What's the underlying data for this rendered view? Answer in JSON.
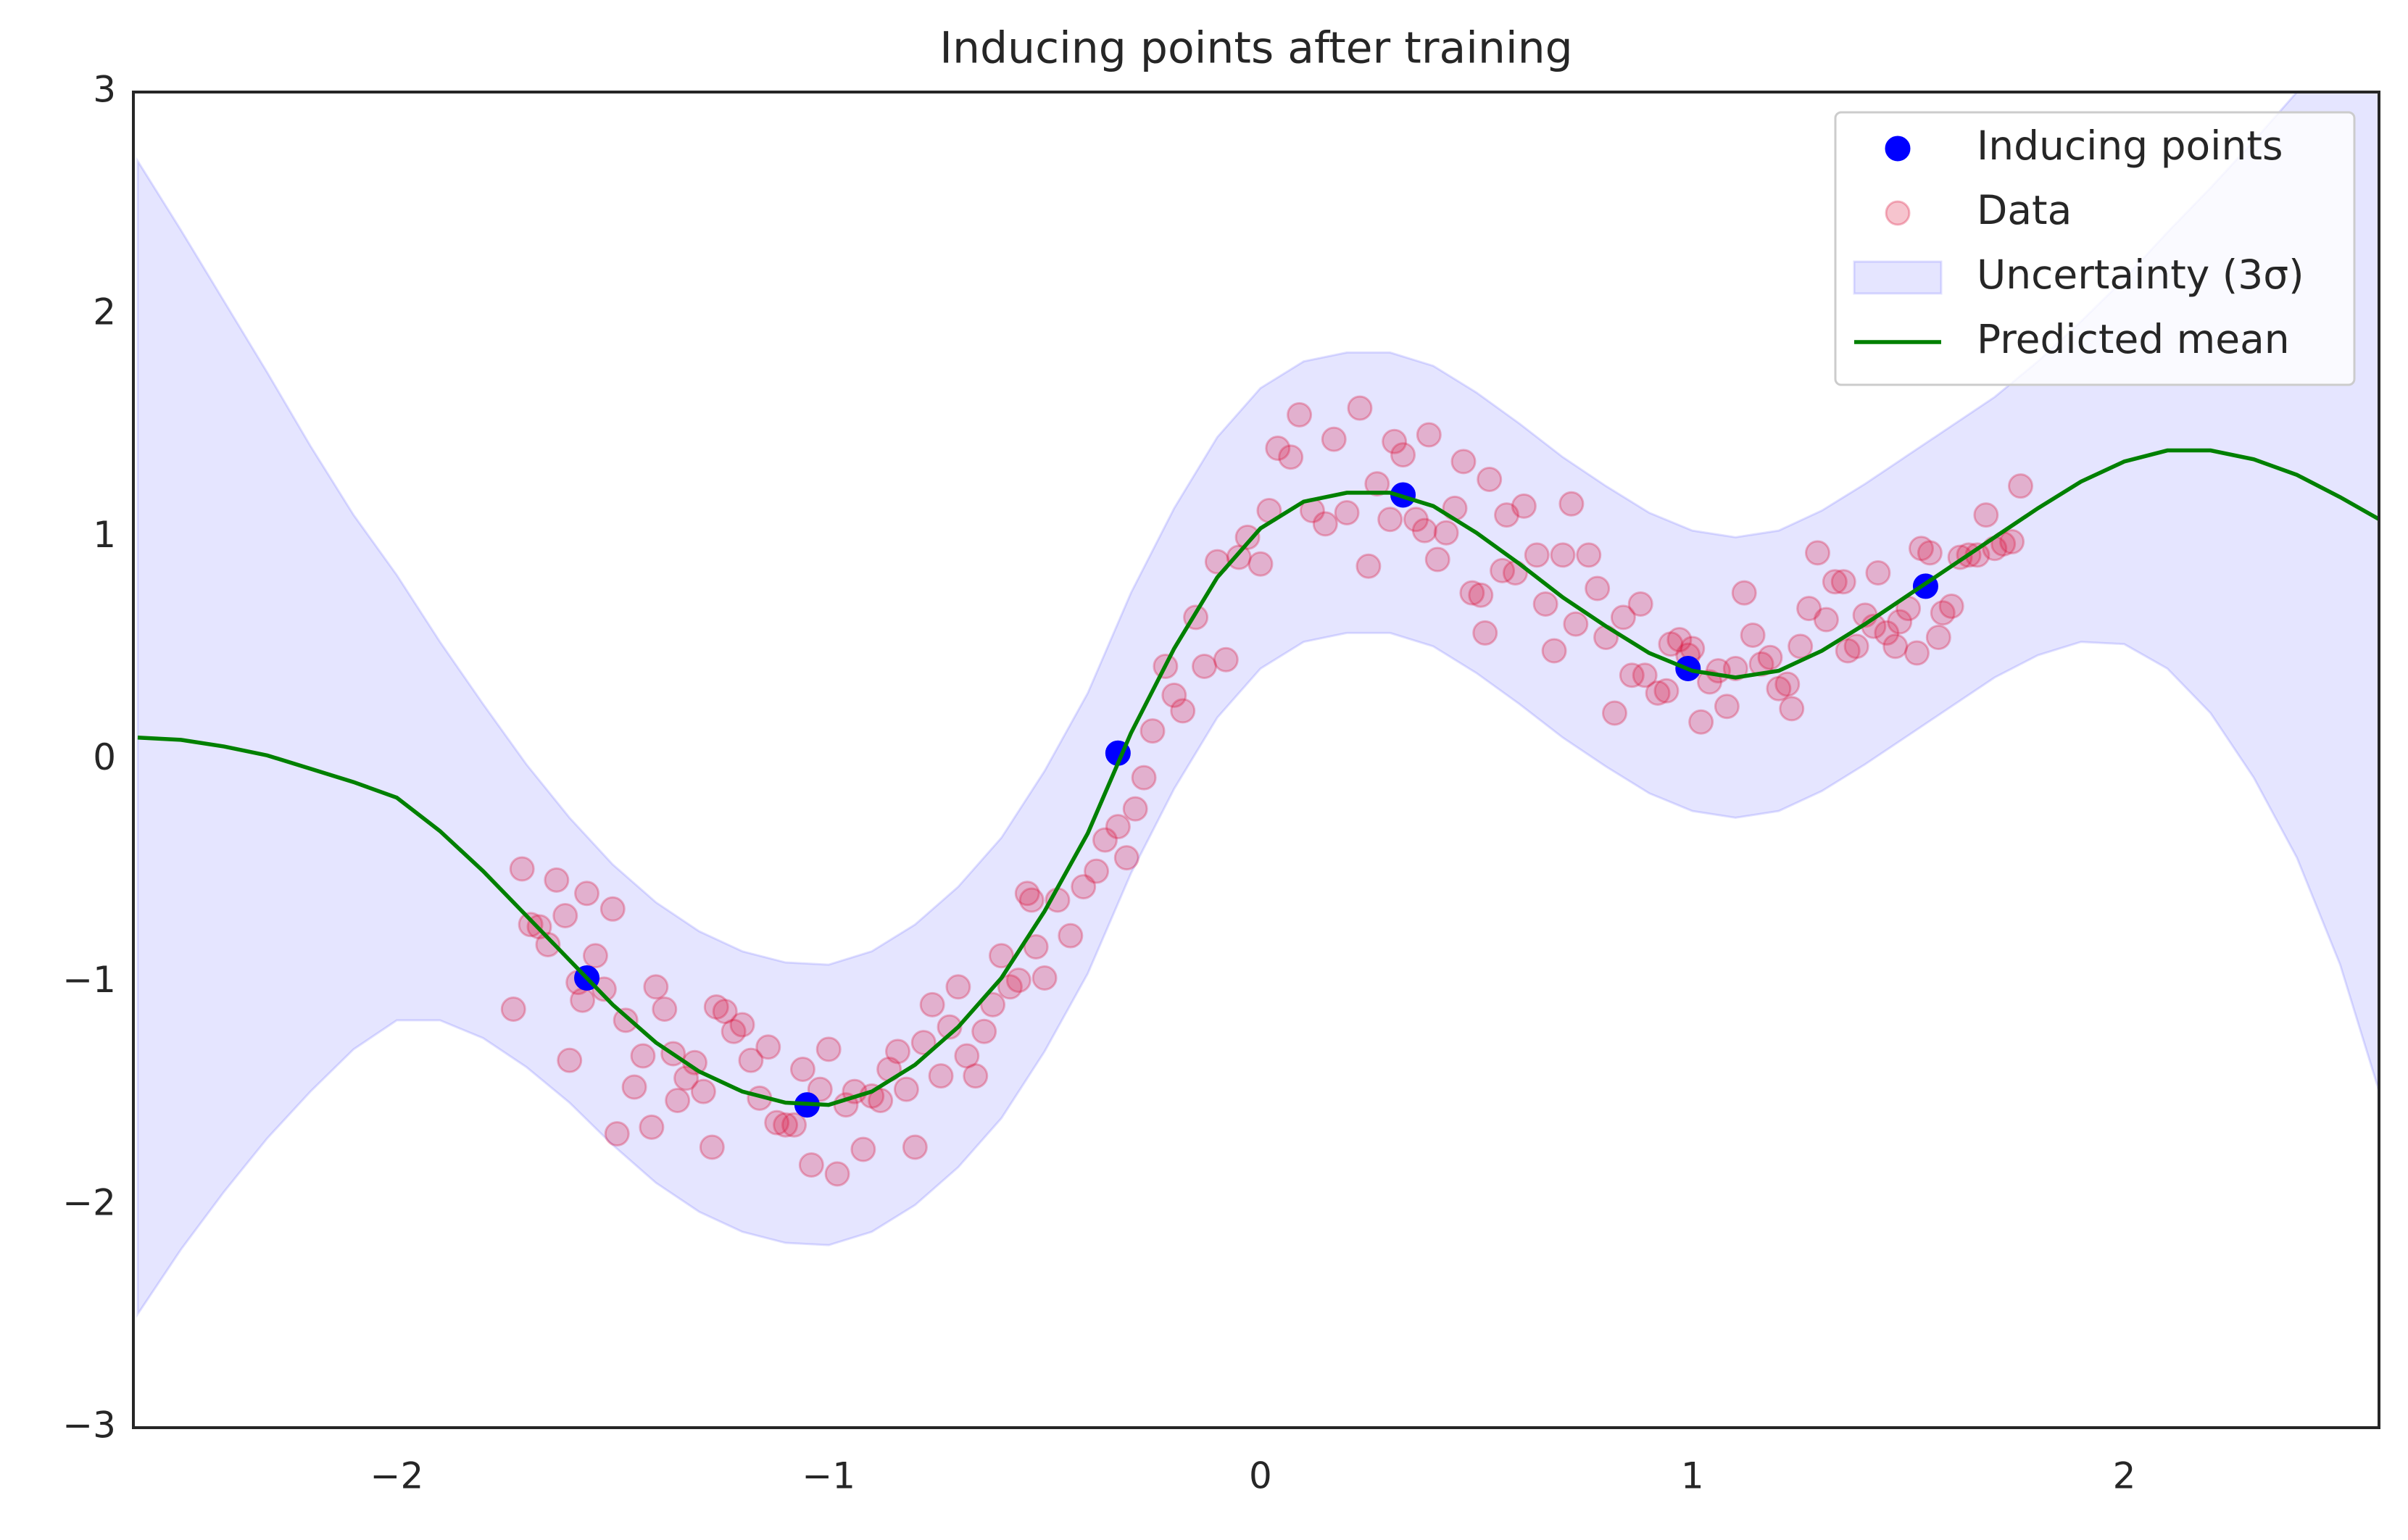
{
  "chart_data": {
    "type": "line",
    "title": "Inducing points after training",
    "xlim": [
      -2.61,
      2.59
    ],
    "ylim": [
      -3,
      3
    ],
    "xticks": [
      {
        "value": -2,
        "label": "−2"
      },
      {
        "value": -1,
        "label": "−1"
      },
      0,
      1,
      2
    ],
    "yticks": [
      {
        "value": -3,
        "label": "−3"
      },
      {
        "value": -2,
        "label": "−2"
      },
      {
        "value": -1,
        "label": "−1"
      },
      0,
      1,
      2,
      3
    ],
    "legend": "upper right",
    "x": [
      -2.6,
      -2.5,
      -2.4,
      -2.3,
      -2.2,
      -2.1,
      -2.0,
      -1.9,
      -1.8,
      -1.7,
      -1.6,
      -1.5,
      -1.4,
      -1.3,
      -1.2,
      -1.1,
      -1.0,
      -0.9,
      -0.8,
      -0.7,
      -0.6,
      -0.5,
      -0.4,
      -0.3,
      -0.2,
      -0.1,
      0.0,
      0.1,
      0.2,
      0.3,
      0.4,
      0.5,
      0.6,
      0.7,
      0.8,
      0.9,
      1.0,
      1.1,
      1.2,
      1.3,
      1.4,
      1.5,
      1.6,
      1.7,
      1.8,
      1.9,
      2.0,
      2.1,
      2.2,
      2.3,
      2.4,
      2.5,
      2.6
    ],
    "series": [
      {
        "name": "Inducing points",
        "type": "scatter",
        "color": "#0000ff",
        "x": [
          -1.56,
          -1.05,
          -0.33,
          0.33,
          0.99,
          1.54
        ],
        "values": [
          -0.98,
          -1.55,
          0.03,
          1.19,
          0.41,
          0.78
        ]
      },
      {
        "name": "Data",
        "type": "scatter",
        "color": "#dc143c",
        "x": [
          -1.73,
          -1.71,
          -1.69,
          -1.67,
          -1.65,
          -1.63,
          -1.61,
          -1.6,
          -1.58,
          -1.57,
          -1.56,
          -1.54,
          -1.52,
          -1.5,
          -1.49,
          -1.47,
          -1.45,
          -1.43,
          -1.41,
          -1.4,
          -1.38,
          -1.36,
          -1.35,
          -1.33,
          -1.31,
          -1.29,
          -1.27,
          -1.26,
          -1.24,
          -1.22,
          -1.2,
          -1.18,
          -1.16,
          -1.14,
          -1.12,
          -1.1,
          -1.08,
          -1.06,
          -1.04,
          -1.02,
          -1.0,
          -0.98,
          -0.96,
          -0.94,
          -0.92,
          -0.9,
          -0.88,
          -0.86,
          -0.84,
          -0.82,
          -0.8,
          -0.78,
          -0.76,
          -0.74,
          -0.72,
          -0.7,
          -0.68,
          -0.66,
          -0.64,
          -0.62,
          -0.6,
          -0.58,
          -0.56,
          -0.54,
          -0.53,
          -0.52,
          -0.5,
          -0.47,
          -0.44,
          -0.41,
          -0.38,
          -0.36,
          -0.33,
          -0.31,
          -0.29,
          -0.27,
          -0.25,
          -0.22,
          -0.2,
          -0.18,
          -0.15,
          -0.13,
          -0.1,
          -0.08,
          -0.05,
          -0.03,
          0.0,
          0.02,
          0.04,
          0.07,
          0.09,
          0.12,
          0.15,
          0.17,
          0.2,
          0.23,
          0.25,
          0.27,
          0.3,
          0.31,
          0.33,
          0.36,
          0.38,
          0.39,
          0.41,
          0.43,
          0.45,
          0.47,
          0.49,
          0.51,
          0.52,
          0.53,
          0.56,
          0.57,
          0.59,
          0.61,
          0.64,
          0.66,
          0.68,
          0.7,
          0.72,
          0.73,
          0.76,
          0.78,
          0.8,
          0.82,
          0.84,
          0.86,
          0.88,
          0.89,
          0.92,
          0.94,
          0.95,
          0.97,
          0.99,
          1.0,
          1.02,
          1.04,
          1.06,
          1.08,
          1.1,
          1.12,
          1.14,
          1.16,
          1.18,
          1.2,
          1.22,
          1.23,
          1.25,
          1.27,
          1.29,
          1.31,
          1.33,
          1.35,
          1.36,
          1.38,
          1.4,
          1.42,
          1.43,
          1.45,
          1.47,
          1.48,
          1.5,
          1.52,
          1.53,
          1.55,
          1.57,
          1.58,
          1.6,
          1.62,
          1.64,
          1.66,
          1.68,
          1.7,
          1.72,
          1.74,
          1.76
        ],
        "values": [
          -1.12,
          -0.49,
          -0.74,
          -0.75,
          -0.83,
          -0.54,
          -0.7,
          -1.35,
          -1.0,
          -1.08,
          -0.6,
          -0.88,
          -1.03,
          -0.67,
          -1.68,
          -1.17,
          -1.47,
          -1.33,
          -1.65,
          -1.02,
          -1.12,
          -1.32,
          -1.53,
          -1.43,
          -1.36,
          -1.49,
          -1.74,
          -1.11,
          -1.13,
          -1.22,
          -1.19,
          -1.35,
          -1.52,
          -1.29,
          -1.63,
          -1.64,
          -1.64,
          -1.39,
          -1.82,
          -1.48,
          -1.3,
          -1.86,
          -1.55,
          -1.49,
          -1.75,
          -1.51,
          -1.53,
          -1.39,
          -1.31,
          -1.48,
          -1.74,
          -1.27,
          -1.1,
          -1.42,
          -1.2,
          -1.02,
          -1.33,
          -1.42,
          -1.22,
          -1.1,
          -0.88,
          -1.02,
          -0.99,
          -0.6,
          -0.63,
          -0.84,
          -0.98,
          -0.63,
          -0.79,
          -0.57,
          -0.5,
          -0.36,
          -0.3,
          -0.44,
          -0.22,
          -0.08,
          0.13,
          0.42,
          0.29,
          0.22,
          0.64,
          0.42,
          0.89,
          0.45,
          0.91,
          1.0,
          0.88,
          1.12,
          1.4,
          1.36,
          1.55,
          1.12,
          1.06,
          1.44,
          1.11,
          1.58,
          0.87,
          1.24,
          1.08,
          1.43,
          1.37,
          1.08,
          1.03,
          1.46,
          0.9,
          1.02,
          1.13,
          1.34,
          0.75,
          0.74,
          0.57,
          1.26,
          0.85,
          1.1,
          0.84,
          1.14,
          0.92,
          0.7,
          0.49,
          0.92,
          1.15,
          0.61,
          0.92,
          0.77,
          0.55,
          0.21,
          0.64,
          0.38,
          0.7,
          0.38,
          0.3,
          0.31,
          0.52,
          0.54,
          0.47,
          0.5,
          0.17,
          0.35,
          0.4,
          0.24,
          0.41,
          0.75,
          0.56,
          0.43,
          0.46,
          0.32,
          0.34,
          0.23,
          0.51,
          0.68,
          0.93,
          0.63,
          0.8,
          0.8,
          0.49,
          0.51,
          0.65,
          0.6,
          0.84,
          0.57,
          0.51,
          0.62,
          0.68,
          0.48,
          0.95,
          0.93,
          0.55,
          0.66,
          0.69,
          0.91,
          0.92,
          0.92,
          1.1,
          0.95,
          0.97,
          0.98,
          1.23
        ]
      },
      {
        "name": "Uncertainty (3σ)",
        "type": "band",
        "color": "#0000ff",
        "upper": [
          2.69,
          2.38,
          2.06,
          1.74,
          1.41,
          1.1,
          0.83,
          0.53,
          0.25,
          -0.02,
          -0.26,
          -0.47,
          -0.64,
          -0.77,
          -0.86,
          -0.91,
          -0.92,
          -0.86,
          -0.74,
          -0.57,
          -0.35,
          -0.05,
          0.3,
          0.75,
          1.13,
          1.45,
          1.67,
          1.79,
          1.83,
          1.83,
          1.77,
          1.65,
          1.51,
          1.36,
          1.23,
          1.11,
          1.03,
          1.0,
          1.03,
          1.12,
          1.24,
          1.37,
          1.5,
          1.63,
          1.79,
          1.97,
          2.16,
          2.37,
          2.57,
          2.78,
          3.0,
          3.28,
          3.69
        ],
        "lower": [
          -2.49,
          -2.2,
          -1.94,
          -1.7,
          -1.49,
          -1.3,
          -1.17,
          -1.17,
          -1.25,
          -1.38,
          -1.54,
          -1.73,
          -1.9,
          -2.03,
          -2.12,
          -2.17,
          -2.18,
          -2.12,
          -2.0,
          -1.83,
          -1.61,
          -1.31,
          -0.96,
          -0.51,
          -0.13,
          0.19,
          0.41,
          0.53,
          0.57,
          0.57,
          0.51,
          0.39,
          0.25,
          0.1,
          -0.03,
          -0.15,
          -0.23,
          -0.26,
          -0.23,
          -0.14,
          -0.02,
          0.11,
          0.24,
          0.37,
          0.47,
          0.53,
          0.52,
          0.41,
          0.21,
          -0.08,
          -0.44,
          -0.92,
          -1.55
        ]
      },
      {
        "name": "Predicted mean",
        "type": "line",
        "color": "#008000",
        "values": [
          0.1,
          0.09,
          0.06,
          0.02,
          -0.04,
          -0.1,
          -0.17,
          -0.32,
          -0.5,
          -0.7,
          -0.9,
          -1.1,
          -1.27,
          -1.4,
          -1.49,
          -1.54,
          -1.55,
          -1.49,
          -1.37,
          -1.2,
          -0.98,
          -0.68,
          -0.33,
          0.12,
          0.5,
          0.82,
          1.04,
          1.16,
          1.2,
          1.2,
          1.14,
          1.02,
          0.88,
          0.73,
          0.6,
          0.48,
          0.4,
          0.37,
          0.4,
          0.49,
          0.61,
          0.74,
          0.87,
          1.0,
          1.13,
          1.25,
          1.34,
          1.39,
          1.39,
          1.35,
          1.28,
          1.18,
          1.07
        ]
      }
    ]
  }
}
